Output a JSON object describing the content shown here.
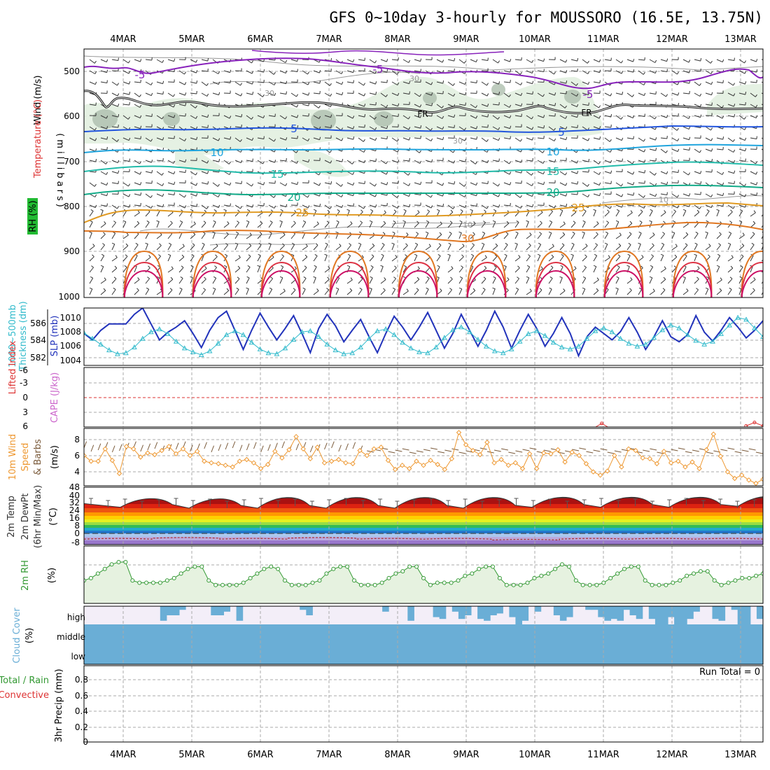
{
  "title": "GFS 0~10day 3-hourly for MOUSSORO (16.5E, 13.75N)",
  "dates": [
    "4MAR",
    "5MAR",
    "6MAR",
    "7MAR",
    "8MAR",
    "9MAR",
    "10MAR",
    "11MAR",
    "12MAR",
    "13MAR"
  ],
  "colors": {
    "grid": "#aaaaaa",
    "thickness": "#33bbcc",
    "slp": "#2233bb",
    "wind10": "#ee9933",
    "barb10": "#7a5a3a",
    "rh2m": "#339933",
    "rhFill": "#e6f2e0",
    "cloud": "#6aaed6",
    "cloudHighBg": "#f3eef8",
    "lifted": "#dd3333",
    "cape": "#cc66cc",
    "tempHot": "#cc2222"
  },
  "panels": {
    "upper": {
      "ylabel_wind": "Wind (m/s)",
      "ylabel_temp": "Temperature (°C)",
      "ylabel_rh": "RH (%)",
      "ylabel_p": "(millibars)",
      "ticks": [
        "500",
        "600",
        "700",
        "800",
        "900",
        "1000"
      ],
      "labels": {
        "m5a": "-5",
        "m5b": "-5",
        "m5c": "-5",
        "fr1": "FR",
        "fr2": "FR",
        "p5a": "5",
        "p5b": "5",
        "p10a": "10",
        "p10b": "10",
        "p15a": "15",
        "p15b": "15",
        "p20a": "20",
        "p20b": "20",
        "p25a": "25",
        "p25b": "25",
        "p30": "30",
        "rh30a": "30",
        "rh30b": "30",
        "rh30c": "30",
        "rh10a": "10",
        "rh10b": "10"
      }
    },
    "thick": {
      "ylabel1": "1000~500mb",
      "ylabel2": "Thickness (dm)",
      "ylabel3": "SLP (mb)",
      "ticksL": [
        "586",
        "584",
        "582"
      ],
      "ticksR": [
        "1010",
        "1008",
        "1006",
        "1004"
      ]
    },
    "li": {
      "ylabel1": "Lifted Index",
      "ylabel2": "CAPE (J/kg)",
      "ticks": [
        "-6",
        "-3",
        "0",
        "3",
        "6"
      ]
    },
    "wind": {
      "ylabel1": "10m Wind",
      "ylabel2": "Speed",
      "ylabel3": "& Barbs",
      "ylabel4": "(m/s)",
      "ticks": [
        "8",
        "6",
        "4"
      ]
    },
    "temp": {
      "ylabel1": "2m Temp",
      "ylabel2": "2m DewPt",
      "ylabel3": "(6hr Min/Max)",
      "ylabel4": "(°C)",
      "ticks": [
        "48",
        "40",
        "32",
        "24",
        "16",
        "8",
        "0",
        "-8"
      ]
    },
    "rh": {
      "ylabel1": "2m RH",
      "ylabel2": "(%)"
    },
    "cloud": {
      "ylabel1": "Cloud Cover",
      "ylabel2": "(%)",
      "levels": [
        "high",
        "middle",
        "low"
      ]
    },
    "precip": {
      "ylabel1": "3hr Precip (mm)",
      "ylabel2": "Total / Rain",
      "ylabel3": "Convective",
      "ticks": [
        "0.8",
        "0.6",
        "0.4",
        "0.2",
        "0"
      ],
      "run_total": "Run Total = 0"
    }
  },
  "chart_data": [
    {
      "type": "line",
      "title": "1000~500mb Thickness (dm) / SLP (mb)",
      "x_step_hours": 3,
      "series": [
        {
          "name": "1000~500mb Thickness (dm)",
          "axis": "left",
          "ylim": [
            581,
            587
          ],
          "values": [
            584.4,
            583.8,
            583.2,
            582.6,
            582.2,
            582.3,
            582.9,
            583.8,
            584.5,
            584.8,
            584.3,
            583.5,
            582.8,
            582.4,
            582.1,
            582.5,
            583.3,
            584.2,
            584.6,
            584.2,
            583.4,
            582.7,
            582.3,
            582.2,
            582.8,
            583.7,
            584.5,
            584.6,
            584.0,
            583.2,
            582.6,
            582.2,
            582.3,
            582.9,
            583.8,
            584.6,
            584.8,
            584.2,
            583.4,
            582.8,
            582.4,
            582.3,
            582.9,
            583.9,
            584.7,
            585.0,
            584.5,
            583.7,
            583.0,
            582.5,
            582.3,
            582.7,
            583.5,
            584.3,
            584.6,
            584.1,
            583.4,
            582.9,
            582.7,
            583.0,
            583.8,
            584.6,
            584.9,
            584.5,
            583.8,
            583.3,
            583.0,
            583.2,
            583.9,
            584.7,
            585.2,
            584.9,
            584.2,
            583.6,
            583.2,
            583.5,
            584.3,
            585.2,
            586.0,
            585.8,
            584.9,
            584.0
          ]
        },
        {
          "name": "SLP (mb)",
          "axis": "right",
          "ylim": [
            1002,
            1011
          ],
          "values": [
            1007.0,
            1006.0,
            1007.5,
            1008.5,
            1008.5,
            1008.5,
            1010.0,
            1011.0,
            1008.5,
            1006.0,
            1007.2,
            1008.0,
            1009.0,
            1007.0,
            1004.8,
            1007.5,
            1009.5,
            1010.5,
            1007.5,
            1004.5,
            1007.5,
            1010.2,
            1008.0,
            1006.0,
            1007.8,
            1009.8,
            1007.0,
            1004.0,
            1007.8,
            1010.0,
            1008.2,
            1005.7,
            1007.5,
            1009.2,
            1006.5,
            1004.0,
            1007.0,
            1009.7,
            1008.0,
            1006.0,
            1008.0,
            1010.3,
            1007.5,
            1004.7,
            1007.0,
            1010.0,
            1007.5,
            1005.0,
            1007.5,
            1010.5,
            1008.0,
            1004.7,
            1007.5,
            1010.0,
            1007.8,
            1005.0,
            1007.0,
            1009.5,
            1007.0,
            1003.5,
            1006.5,
            1008.0,
            1007.0,
            1006.0,
            1007.3,
            1009.5,
            1007.2,
            1004.5,
            1006.5,
            1009.0,
            1006.5,
            1005.7,
            1006.8,
            1009.8,
            1007.2,
            1005.8,
            1007.5,
            1009.5,
            1008.0,
            1006.3,
            1007.5,
            1009.0
          ]
        }
      ]
    },
    {
      "type": "line",
      "title": "Lifted Index / CAPE (J/kg)",
      "ylim": [
        6,
        -6
      ],
      "series": [
        {
          "name": "Lifted Index",
          "values": [
            [
              60,
              6.2
            ],
            [
              61,
              5.2
            ],
            [
              62,
              6.2
            ],
            [
              78,
              5.7
            ],
            [
              79,
              5.0
            ],
            [
              80,
              5.7
            ]
          ]
        }
      ]
    },
    {
      "type": "line",
      "title": "10m Wind Speed & Barbs (m/s)",
      "ylim": [
        2.5,
        9.5
      ],
      "series": [
        {
          "name": "10m Wind Speed",
          "values": [
            6.2,
            5.5,
            5.5,
            7.0,
            5.6,
            4.0,
            7.3,
            7.0,
            6.0,
            6.5,
            6.3,
            6.8,
            7.3,
            6.4,
            7.0,
            6.2,
            6.7,
            5.5,
            5.3,
            5.2,
            5.0,
            4.8,
            5.5,
            5.7,
            5.3,
            4.6,
            5.1,
            6.7,
            5.9,
            6.9,
            8.5,
            7.0,
            5.8,
            7.2,
            5.3,
            5.5,
            5.7,
            5.3,
            5.2,
            6.8,
            6.2,
            7.0,
            7.2,
            5.6,
            4.5,
            5.0,
            4.6,
            5.5,
            5.0,
            5.6,
            5.1,
            4.5,
            5.8,
            9.0,
            7.5,
            6.8,
            6.3,
            7.8,
            5.3,
            5.7,
            5.0,
            5.3,
            4.6,
            6.4,
            4.6,
            6.5,
            6.4,
            6.9,
            5.4,
            6.6,
            6.2,
            5.2,
            4.2,
            3.8,
            4.3,
            6.2,
            4.8,
            7.0,
            6.8,
            5.9,
            5.8,
            5.2,
            6.7,
            5.3,
            5.5,
            4.8,
            5.4,
            4.6,
            6.9,
            8.8,
            6.1,
            4.2,
            3.4,
            3.8,
            3.2,
            2.8,
            3.3
          ]
        }
      ]
    },
    {
      "type": "area",
      "title": "2m Temp / 2m DewPt (°C)",
      "ylim": [
        -15,
        48
      ],
      "series": [
        {
          "name": "2m Temp max (°C)",
          "values": [
            38,
            38,
            40,
            40,
            40,
            40,
            40,
            40,
            40,
            41
          ]
        },
        {
          "name": "2m Temp min (°C)",
          "values": [
            26,
            25,
            25,
            25,
            25,
            25,
            26,
            26,
            26,
            27
          ]
        },
        {
          "name": "2m DewPt (°C)",
          "values": [
            -9,
            -8,
            -9,
            -8,
            -9,
            -9,
            -10,
            -9,
            -9,
            -9
          ]
        }
      ]
    },
    {
      "type": "line",
      "title": "2m RH (%)",
      "ylim": [
        0,
        25
      ],
      "series": [
        {
          "name": "2m RH",
          "values": [
            10,
            11,
            13,
            15,
            17,
            18,
            18,
            10,
            9,
            9,
            9,
            9,
            10,
            11,
            13,
            15,
            16,
            16,
            10,
            8,
            8,
            8,
            8,
            9,
            11,
            13,
            15,
            16,
            15,
            10,
            8,
            8,
            8,
            9,
            10,
            13,
            15,
            16,
            16,
            10,
            8,
            8,
            8,
            9,
            11,
            13,
            14,
            16,
            16,
            11,
            8,
            9,
            9,
            9,
            10,
            12,
            13,
            15,
            16,
            16,
            11,
            8,
            8,
            8,
            9,
            11,
            12,
            13,
            15,
            17,
            16,
            10,
            8,
            8,
            8,
            9,
            11,
            13,
            15,
            16,
            16,
            10,
            8,
            8,
            8,
            9,
            10,
            12,
            13,
            14,
            14,
            10,
            8,
            9,
            10,
            11,
            11,
            12,
            13
          ]
        }
      ]
    },
    {
      "type": "bar",
      "title": "Cloud Cover (%)",
      "levels": [
        "high",
        "middle",
        "low"
      ],
      "series": [
        {
          "name": "high cloud (%)",
          "values": [
            0,
            0,
            0,
            0,
            0,
            0,
            0,
            0,
            0,
            0,
            0,
            0,
            80,
            50,
            50,
            20,
            0,
            0,
            0,
            0,
            50,
            50,
            30,
            0,
            80,
            0,
            0,
            0,
            0,
            0,
            0,
            0,
            0,
            0,
            20,
            50,
            0,
            0,
            0,
            0,
            0,
            0,
            0,
            0,
            0,
            0,
            0,
            30,
            0,
            0,
            0,
            80,
            0,
            0,
            0,
            60,
            70,
            0,
            30,
            70,
            50,
            0,
            70,
            80,
            50,
            40,
            0,
            60,
            100,
            80,
            0,
            30,
            0,
            0,
            50,
            80,
            60,
            0,
            0,
            20,
            20,
            60,
            80,
            70,
            80,
            20,
            50,
            70,
            0,
            70,
            100,
            100,
            60,
            100,
            100,
            70,
            30,
            0,
            0,
            70,
            80,
            0,
            20,
            100,
            100,
            0,
            70
          ]
        }
      ]
    },
    {
      "type": "bar",
      "title": "3hr Precip (mm) Total / Rain / Convective",
      "ylim": [
        0,
        0.9
      ],
      "series": [
        {
          "name": "Total / Rain",
          "values": [
            0,
            0,
            0,
            0,
            0,
            0,
            0,
            0,
            0,
            0
          ]
        },
        {
          "name": "Convective",
          "values": [
            0,
            0,
            0,
            0,
            0,
            0,
            0,
            0,
            0,
            0
          ]
        }
      ]
    }
  ]
}
